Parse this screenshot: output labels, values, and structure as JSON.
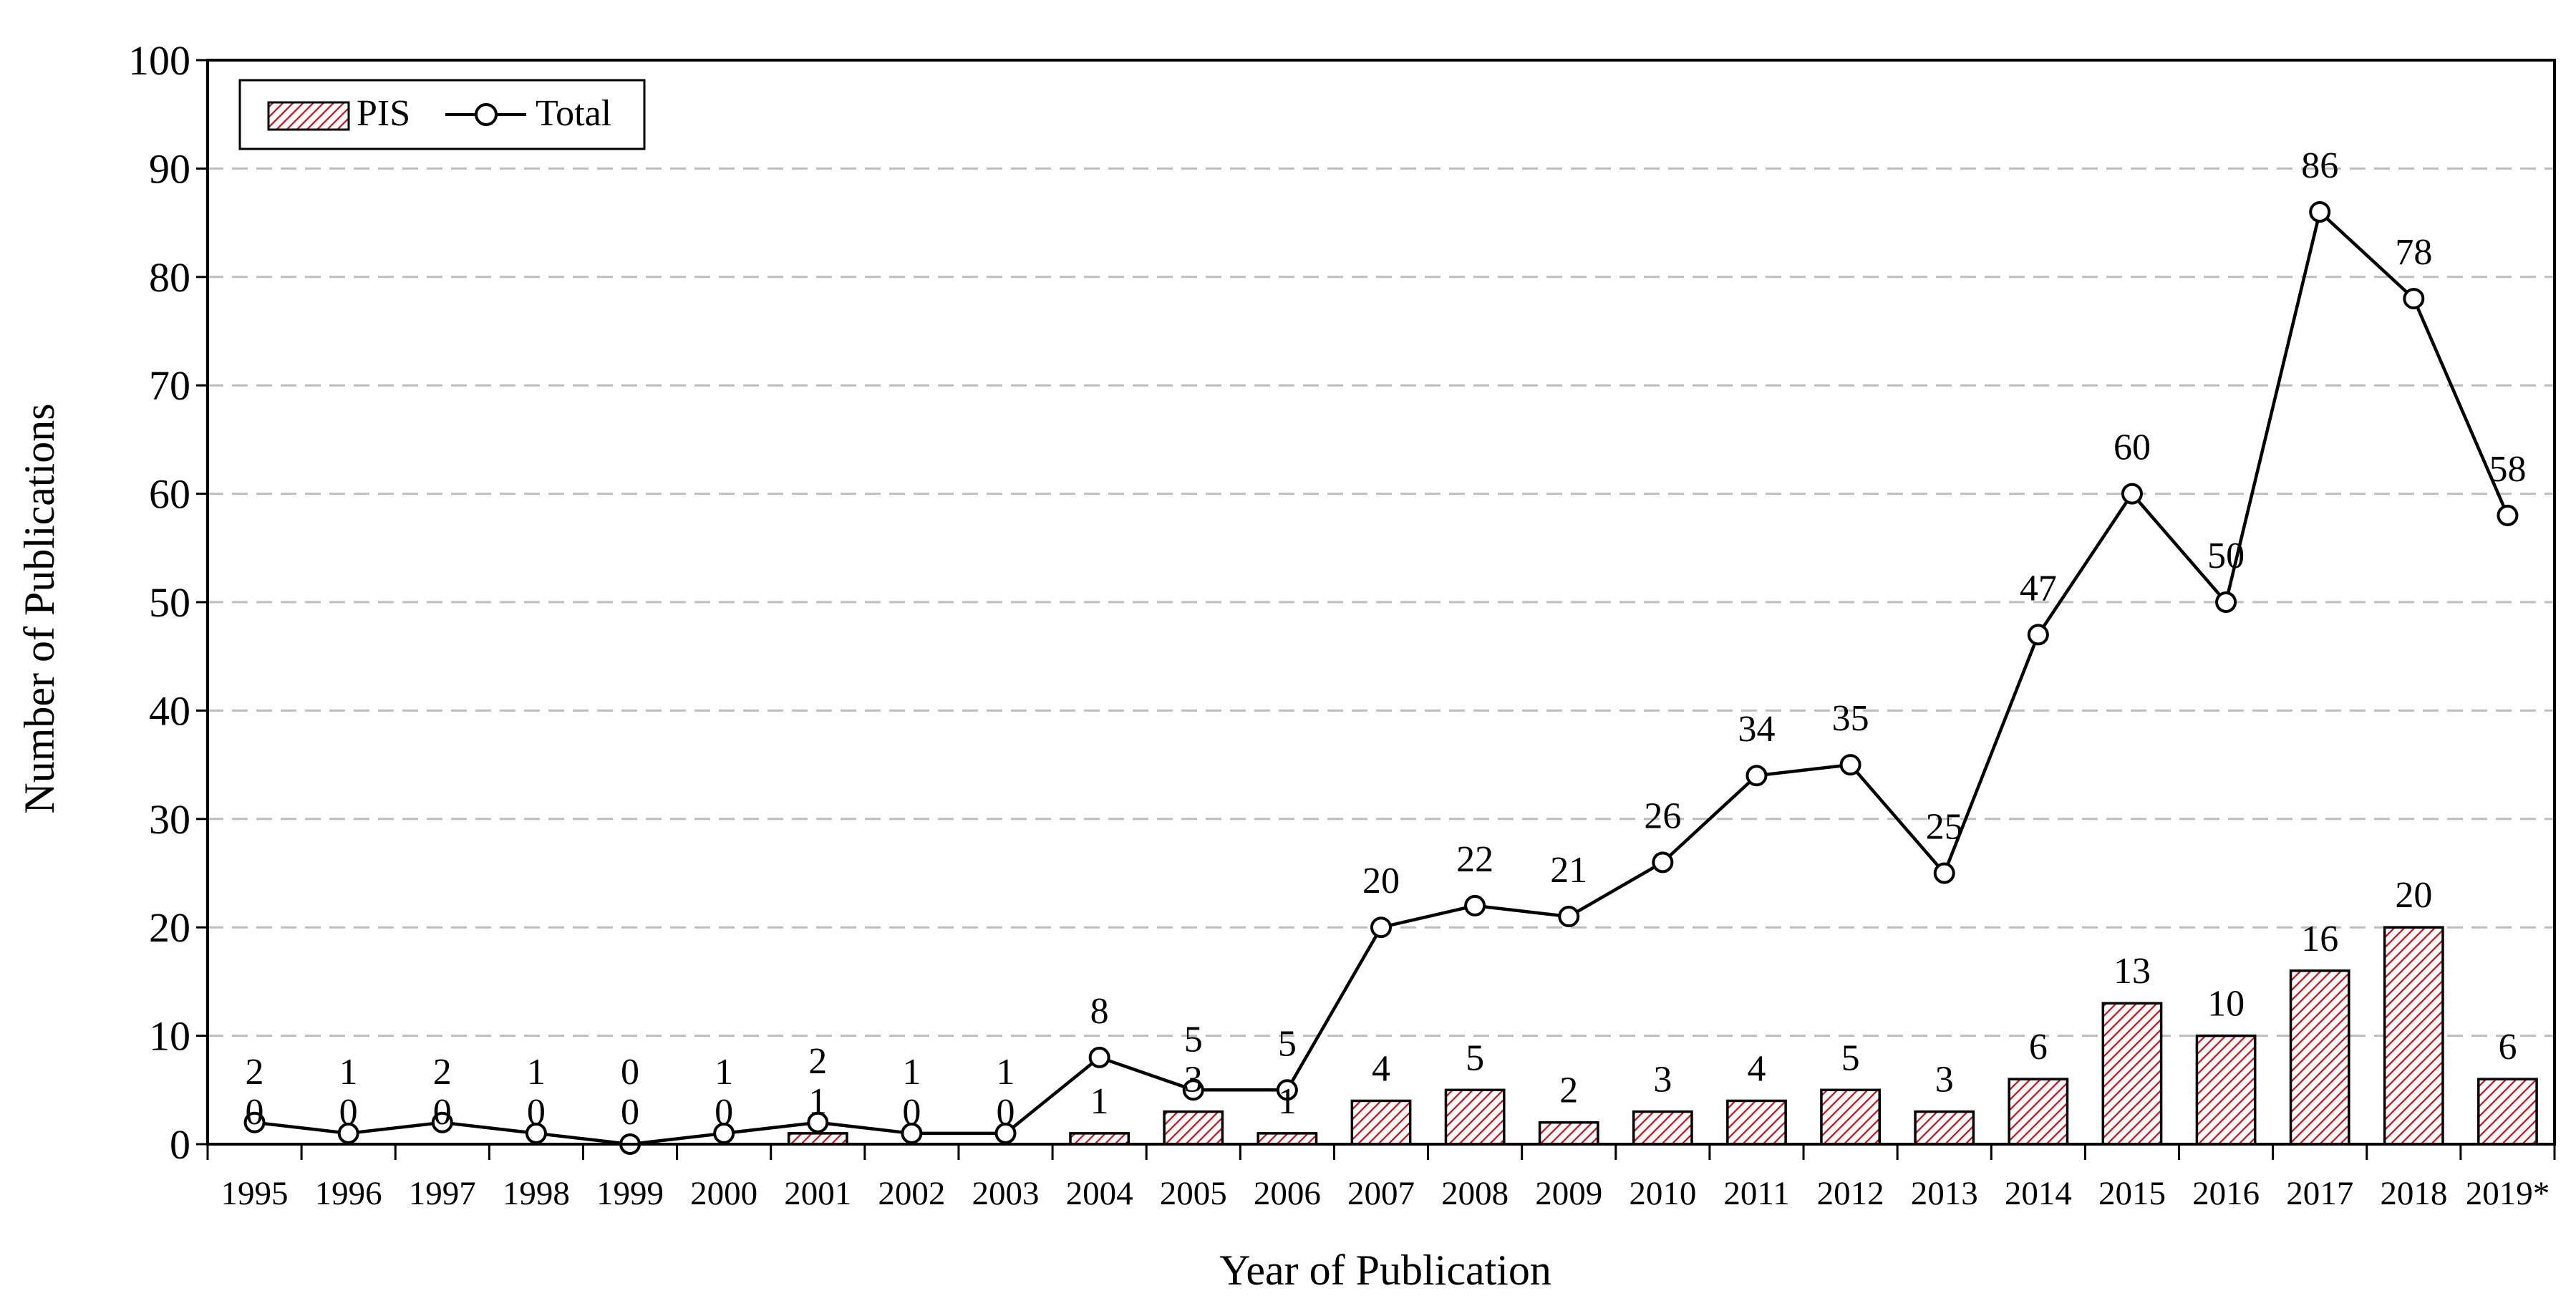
{
  "chart_data": {
    "type": "bar+line",
    "title": "",
    "xlabel": "Year of Publication",
    "ylabel": "Number of Publications",
    "ylim": [
      0,
      100
    ],
    "yticks": [
      "0",
      "10",
      "20",
      "30",
      "40",
      "50",
      "60",
      "70",
      "80",
      "90",
      "100"
    ],
    "grid": "horizontal dashed",
    "legend_position": "top-left",
    "categories": [
      "1995",
      "1996",
      "1997",
      "1998",
      "1999",
      "2000",
      "2001",
      "2002",
      "2003",
      "2004",
      "2005",
      "2006",
      "2007",
      "2008",
      "2009",
      "2010",
      "2011",
      "2012",
      "2013",
      "2014",
      "2015",
      "2016",
      "2017",
      "2018",
      "2019*"
    ],
    "series": [
      {
        "name": "PIS",
        "kind": "bar",
        "pattern": "diagonal-hatch",
        "color": "#c0141e",
        "values": [
          0,
          0,
          0,
          0,
          0,
          0,
          1,
          0,
          0,
          1,
          3,
          1,
          4,
          5,
          2,
          3,
          4,
          5,
          3,
          6,
          13,
          10,
          16,
          20,
          6
        ]
      },
      {
        "name": "Total",
        "kind": "line",
        "marker": "open-circle",
        "color": "#000000",
        "values": [
          2,
          1,
          2,
          1,
          0,
          1,
          2,
          1,
          1,
          8,
          5,
          5,
          20,
          22,
          21,
          26,
          34,
          35,
          25,
          47,
          60,
          50,
          86,
          78,
          58
        ]
      }
    ]
  }
}
